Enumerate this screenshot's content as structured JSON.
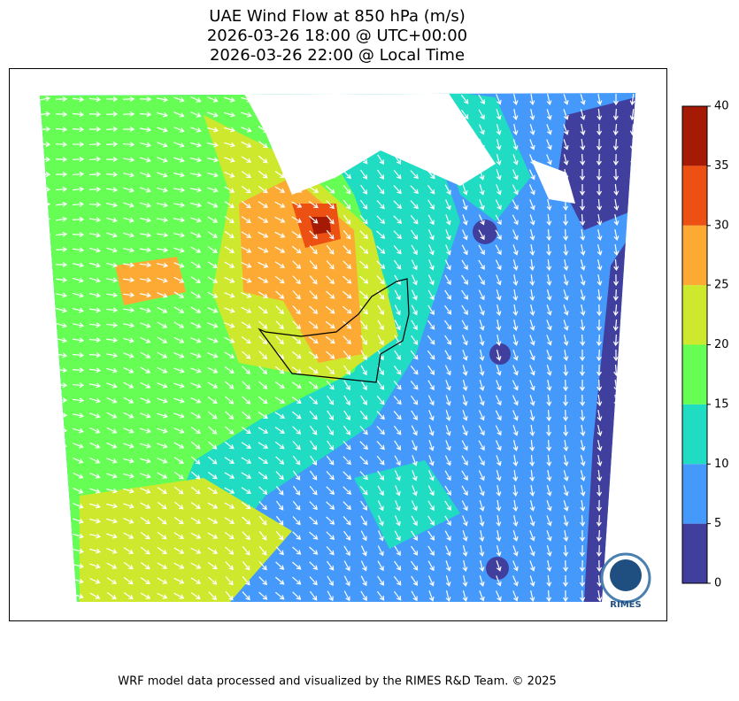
{
  "title": [
    "UAE Wind Flow at 850 hPa (m/s)",
    "2026-03-26 18:00 @ UTC+00:00",
    "2026-03-26 22:00 @ Local Time"
  ],
  "colorbar": {
    "levels": [
      0,
      5,
      10,
      15,
      20,
      25,
      30,
      35,
      40
    ],
    "colors": [
      "#403f9e",
      "#4599fb",
      "#20dcc2",
      "#66fe55",
      "#cde82d",
      "#fdaa35",
      "#ec5012",
      "#a41a04"
    ]
  },
  "logo": "RIMES",
  "footer": "WRF model data processed and visualized by the RIMES R&D Team. © 2025"
}
